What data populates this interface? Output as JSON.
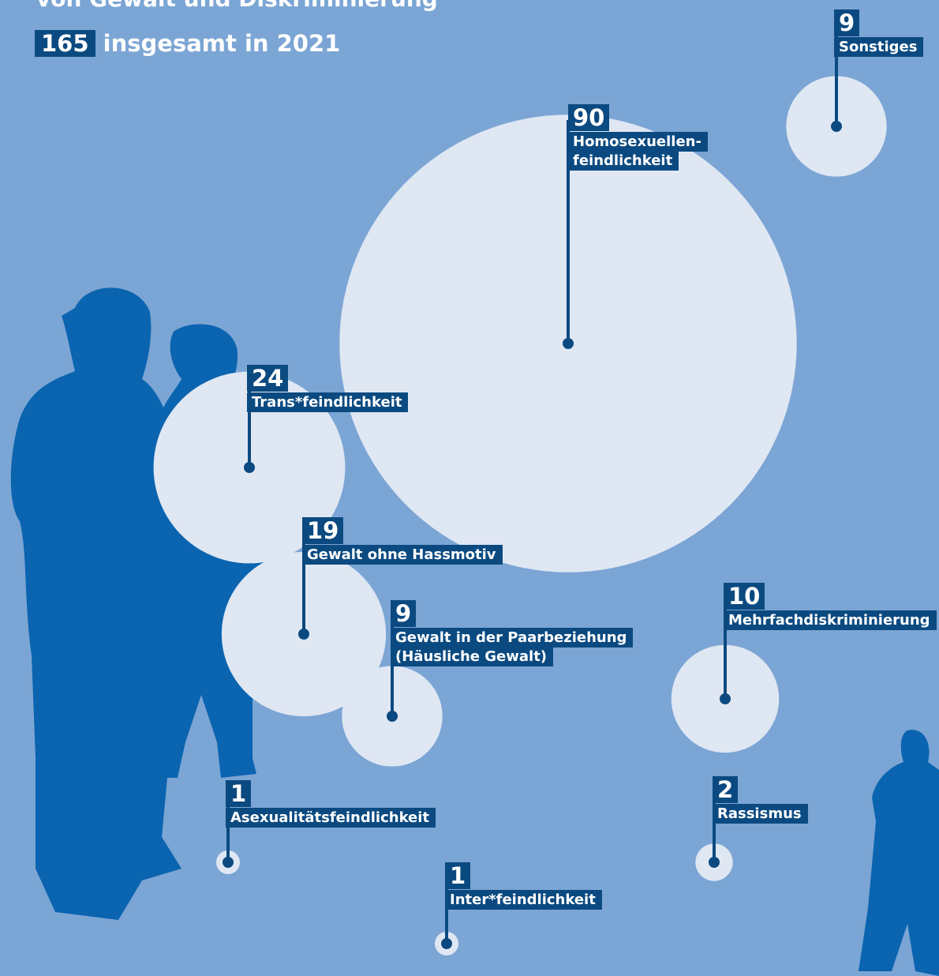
{
  "chart_data": {
    "type": "bubble",
    "title": "von Gewalt und Diskriminierung",
    "total": 165,
    "total_label": "insgesamt in 2021",
    "bubble_color": "#dfe7f3",
    "label_color": "#0b4a80",
    "categories": [
      "Homosexuellen-\nfeindlichkeit",
      "Sonstiges",
      "Trans*feindlichkeit",
      "Gewalt ohne Hassmotiv",
      "Gewalt in der Paarbeziehung\n(Häusliche Gewalt)",
      "Mehrfachdiskriminierung",
      "Asexualitätsfeindlichkeit",
      "Inter*feindlichkeit",
      "Rassismus"
    ],
    "values": [
      90,
      9,
      24,
      19,
      9,
      10,
      1,
      1,
      2
    ]
  }
}
